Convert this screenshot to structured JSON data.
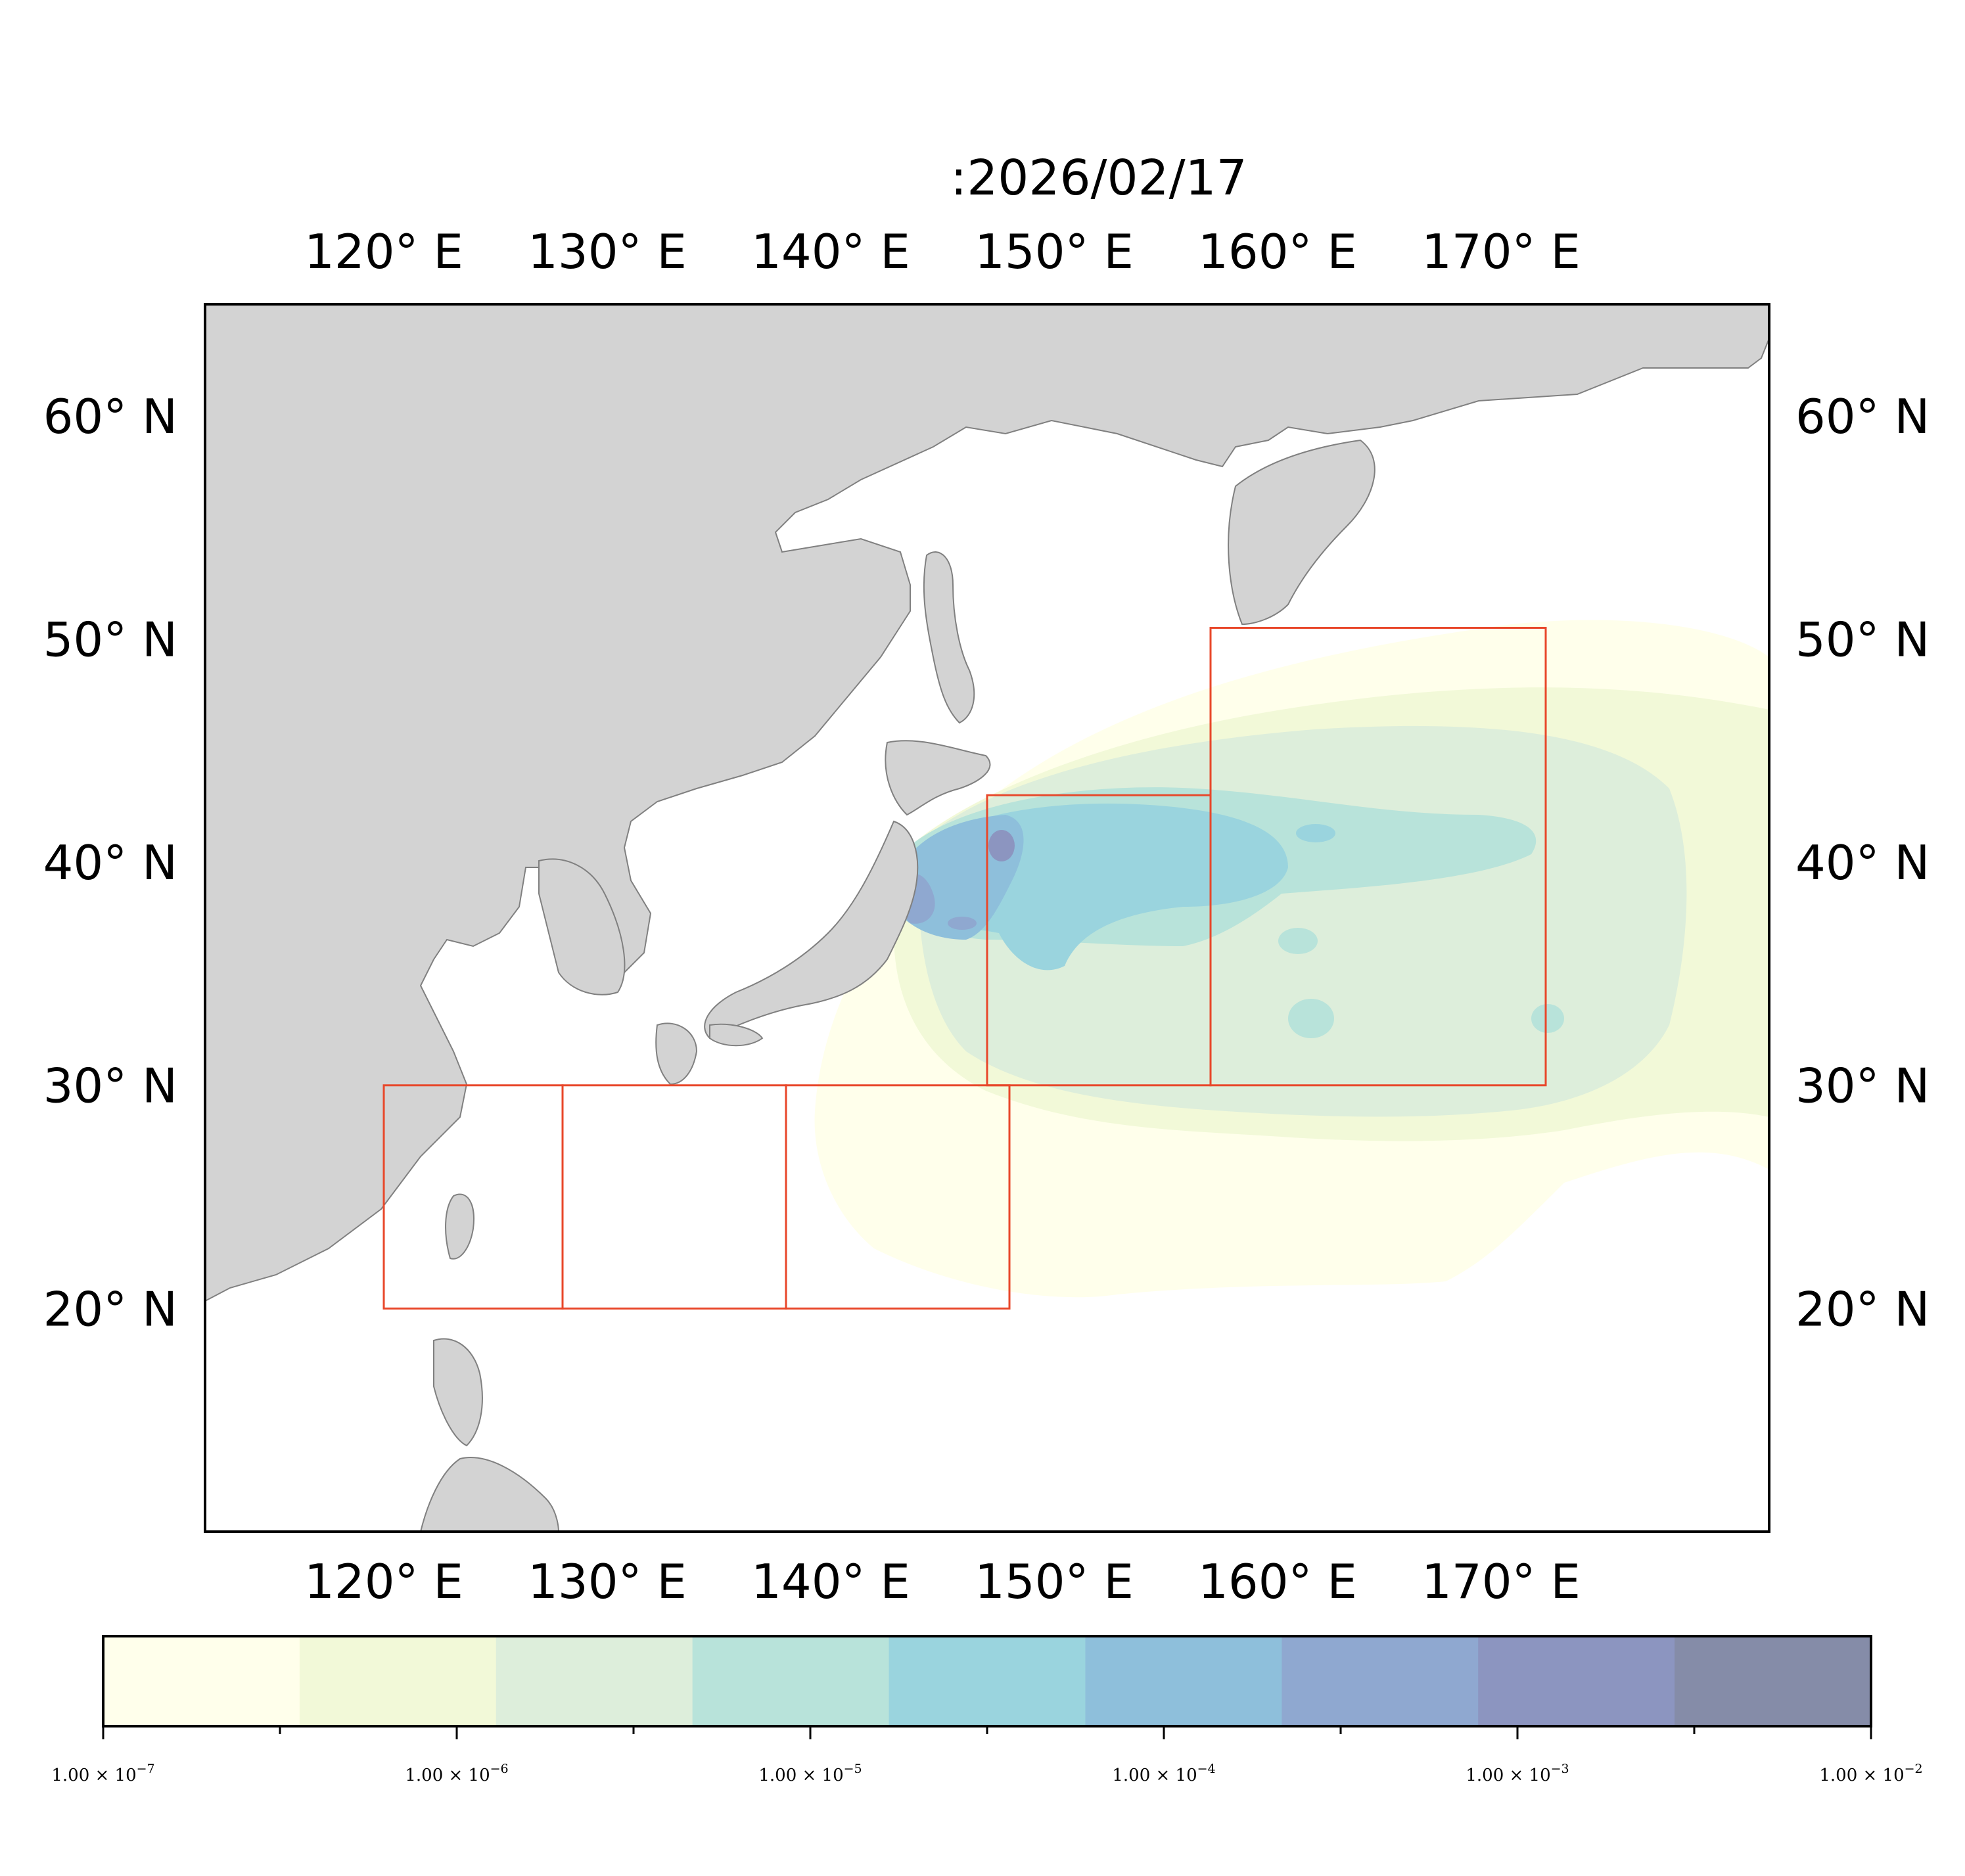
{
  "title": ":2026/02/17",
  "map": {
    "extent": {
      "lon_min": 112,
      "lon_max": 182,
      "lat_min": 10,
      "lat_max": 65
    },
    "lon_ticks": [
      {
        "value": 120,
        "label": "120° E"
      },
      {
        "value": 130,
        "label": "130° E"
      },
      {
        "value": 140,
        "label": "140° E"
      },
      {
        "value": 150,
        "label": "150° E"
      },
      {
        "value": 160,
        "label": "160° E"
      },
      {
        "value": 170,
        "label": "170° E"
      }
    ],
    "lat_ticks": [
      {
        "value": 20,
        "label": "20° N"
      },
      {
        "value": 30,
        "label": "30° N"
      },
      {
        "value": 40,
        "label": "40° N"
      },
      {
        "value": 50,
        "label": "50° N"
      },
      {
        "value": 60,
        "label": "60° N"
      }
    ],
    "colors": {
      "land": "#d3d3d3",
      "coast": "#808080",
      "ocean": "#ffffff",
      "region_box": "#e8472a",
      "frame": "#000000"
    },
    "region_boxes": [
      {
        "lon_min": 120,
        "lon_max": 128,
        "lat_min": 20,
        "lat_max": 30
      },
      {
        "lon_min": 128,
        "lon_max": 138,
        "lat_min": 20,
        "lat_max": 30
      },
      {
        "lon_min": 138,
        "lon_max": 148,
        "lat_min": 20,
        "lat_max": 30
      },
      {
        "lon_min": 147,
        "lon_max": 157,
        "lat_min": 30,
        "lat_max": 43
      },
      {
        "lon_min": 157,
        "lon_max": 172,
        "lat_min": 30,
        "lat_max": 50.5
      }
    ]
  },
  "colorbar": {
    "colors": [
      "#ffffeb",
      "#f2f9d8",
      "#ddeedb",
      "#b8e3da",
      "#9ad4de",
      "#8ebfdb",
      "#8fa8d0",
      "#8c95c0",
      "#858ca8"
    ],
    "tick_labels": [
      {
        "mantissa": "1.00",
        "exp": "−7"
      },
      {
        "mantissa": "1.00",
        "exp": "−6"
      },
      {
        "mantissa": "1.00",
        "exp": "−5"
      },
      {
        "mantissa": "1.00",
        "exp": "−4"
      },
      {
        "mantissa": "1.00",
        "exp": "−3"
      },
      {
        "mantissa": "1.00",
        "exp": "−2"
      }
    ]
  }
}
